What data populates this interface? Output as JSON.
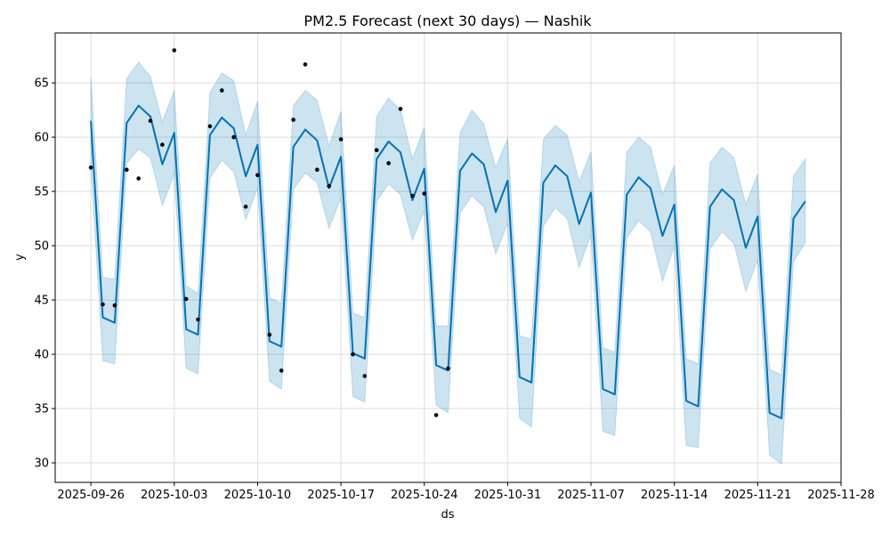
{
  "chart_data": {
    "type": "line",
    "title": "PM2.5 Forecast (next 30 days) — Nashik",
    "xlabel": "ds",
    "ylabel": "y",
    "x_start": "2025-09-26",
    "xlim": [
      "2025-09-23",
      "2025-11-28"
    ],
    "ylim": [
      28.2,
      69.6
    ],
    "x_ticks": [
      "2025-09-26",
      "2025-10-03",
      "2025-10-10",
      "2025-10-17",
      "2025-10-24",
      "2025-10-31",
      "2025-11-07",
      "2025-11-14",
      "2025-11-21",
      "2025-11-28"
    ],
    "y_ticks": [
      30,
      35,
      40,
      45,
      50,
      55,
      60,
      65
    ],
    "grid": true,
    "colors": {
      "forecast": "#0072b2",
      "band": "#0072b2",
      "observed": "#000000",
      "grid": "#dddddd"
    },
    "series": [
      {
        "kind": "line",
        "dates": [
          "2025-09-26",
          "2025-09-27",
          "2025-09-28",
          "2025-09-29",
          "2025-09-30",
          "2025-10-01",
          "2025-10-02",
          "2025-10-03",
          "2025-10-04",
          "2025-10-05",
          "2025-10-06",
          "2025-10-07",
          "2025-10-08",
          "2025-10-09",
          "2025-10-10",
          "2025-10-11",
          "2025-10-12",
          "2025-10-13",
          "2025-10-14",
          "2025-10-15",
          "2025-10-16",
          "2025-10-17",
          "2025-10-18",
          "2025-10-19",
          "2025-10-20",
          "2025-10-21",
          "2025-10-22",
          "2025-10-23",
          "2025-10-24",
          "2025-10-25",
          "2025-10-26",
          "2025-10-27",
          "2025-10-28",
          "2025-10-29",
          "2025-10-30",
          "2025-10-31",
          "2025-11-01",
          "2025-11-02",
          "2025-11-03",
          "2025-11-04",
          "2025-11-05",
          "2025-11-06",
          "2025-11-07",
          "2025-11-08",
          "2025-11-09",
          "2025-11-10",
          "2025-11-11",
          "2025-11-12",
          "2025-11-13",
          "2025-11-14",
          "2025-11-15",
          "2025-11-16",
          "2025-11-17",
          "2025-11-18",
          "2025-11-19",
          "2025-11-20",
          "2025-11-21",
          "2025-11-22",
          "2025-11-23",
          "2025-11-24",
          "2025-11-25"
        ],
        "yhat": [
          61.5,
          43.4,
          42.9,
          61.3,
          62.9,
          61.9,
          57.5,
          60.4,
          42.3,
          41.8,
          60.2,
          61.8,
          60.8,
          56.4,
          59.3,
          41.2,
          40.7,
          59.1,
          60.7,
          59.7,
          55.3,
          58.2,
          40.1,
          39.6,
          58.0,
          59.6,
          58.6,
          54.2,
          57.1,
          39.0,
          38.5,
          56.9,
          58.5,
          57.5,
          53.1,
          56.0,
          37.9,
          37.4,
          55.8,
          57.4,
          56.4,
          52.0,
          54.9,
          36.8,
          36.3,
          54.7,
          56.3,
          55.3,
          50.9,
          53.8,
          35.7,
          35.2,
          53.6,
          55.2,
          54.2,
          49.8,
          52.7,
          34.6,
          34.1,
          52.5,
          54.1
        ],
        "lower": [
          57.5,
          39.4,
          39.1,
          57.6,
          58.9,
          58.1,
          53.7,
          56.6,
          38.7,
          38.2,
          56.2,
          57.9,
          56.8,
          52.4,
          55.3,
          37.5,
          36.8,
          55.2,
          56.7,
          55.8,
          51.6,
          54.4,
          36.1,
          35.6,
          54.1,
          55.7,
          54.7,
          50.5,
          53.2,
          35.3,
          34.6,
          53.0,
          54.6,
          53.6,
          49.2,
          52.1,
          34.1,
          33.3,
          51.8,
          53.5,
          52.5,
          48.0,
          51.0,
          32.9,
          32.5,
          50.7,
          52.3,
          51.3,
          46.7,
          49.9,
          31.6,
          31.4,
          49.7,
          51.3,
          50.2,
          45.8,
          48.7,
          30.7,
          29.9,
          48.5,
          50.3
        ],
        "upper": [
          65.5,
          47.1,
          46.9,
          65.4,
          66.9,
          65.6,
          61.4,
          64.3,
          46.3,
          45.6,
          64.1,
          65.9,
          65.2,
          60.2,
          63.3,
          45.2,
          44.7,
          62.9,
          64.3,
          63.4,
          59.2,
          62.4,
          43.8,
          43.4,
          61.9,
          63.6,
          62.5,
          58.0,
          60.9,
          42.6,
          42.6,
          60.4,
          62.5,
          61.2,
          57.2,
          59.9,
          41.7,
          41.4,
          59.8,
          61.1,
          60.2,
          55.9,
          58.7,
          40.6,
          40.2,
          58.6,
          60.0,
          59.1,
          54.7,
          57.4,
          39.6,
          39.1,
          57.6,
          59.1,
          58.1,
          53.8,
          56.6,
          38.6,
          38.1,
          56.4,
          58.0
        ]
      },
      {
        "kind": "scatter",
        "dates": [
          "2025-09-26",
          "2025-09-27",
          "2025-09-28",
          "2025-09-29",
          "2025-09-30",
          "2025-10-01",
          "2025-10-02",
          "2025-10-03",
          "2025-10-04",
          "2025-10-05",
          "2025-10-06",
          "2025-10-07",
          "2025-10-08",
          "2025-10-09",
          "2025-10-10",
          "2025-10-11",
          "2025-10-12",
          "2025-10-13",
          "2025-10-14",
          "2025-10-15",
          "2025-10-16",
          "2025-10-17",
          "2025-10-18",
          "2025-10-19",
          "2025-10-20",
          "2025-10-21",
          "2025-10-22",
          "2025-10-23",
          "2025-10-24",
          "2025-10-25",
          "2025-10-26"
        ],
        "values": [
          57.2,
          44.6,
          44.5,
          57.0,
          56.2,
          61.5,
          59.3,
          68.0,
          45.1,
          43.2,
          61.0,
          64.3,
          60.0,
          53.6,
          56.5,
          41.8,
          38.5,
          61.6,
          66.7,
          57.0,
          55.5,
          59.8,
          40.0,
          38.0,
          58.8,
          57.6,
          62.6,
          54.6,
          54.8,
          34.4,
          38.7
        ]
      }
    ]
  }
}
